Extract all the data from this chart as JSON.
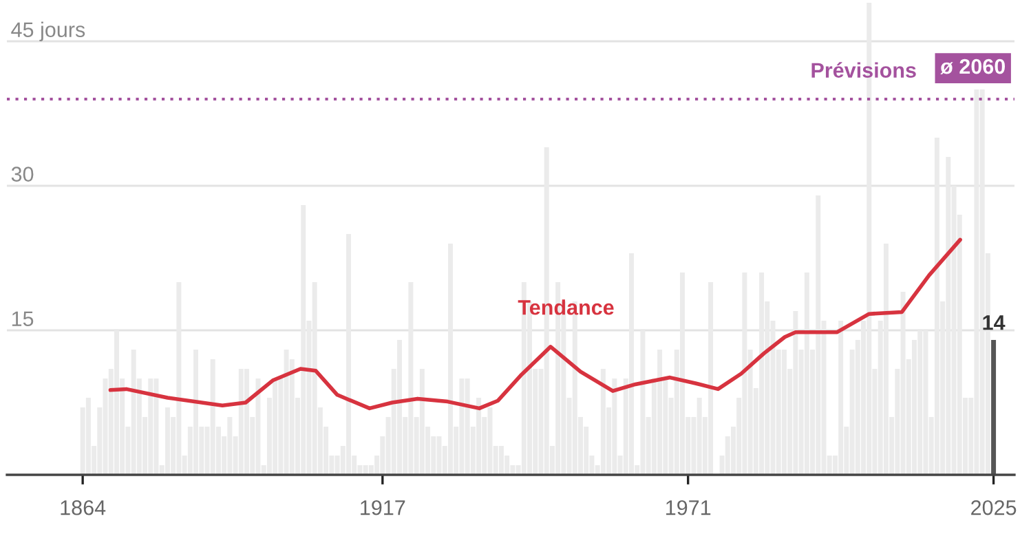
{
  "chart_data": {
    "type": "bar",
    "x": [
      1864,
      1865,
      1866,
      1867,
      1868,
      1869,
      1870,
      1871,
      1872,
      1873,
      1874,
      1875,
      1876,
      1877,
      1878,
      1879,
      1880,
      1881,
      1882,
      1883,
      1884,
      1885,
      1886,
      1887,
      1888,
      1889,
      1890,
      1891,
      1892,
      1893,
      1894,
      1895,
      1896,
      1897,
      1898,
      1899,
      1900,
      1901,
      1902,
      1903,
      1904,
      1905,
      1906,
      1907,
      1908,
      1909,
      1910,
      1911,
      1912,
      1913,
      1914,
      1915,
      1916,
      1917,
      1918,
      1919,
      1920,
      1921,
      1922,
      1923,
      1924,
      1925,
      1926,
      1927,
      1928,
      1929,
      1930,
      1931,
      1932,
      1933,
      1934,
      1935,
      1936,
      1937,
      1938,
      1939,
      1940,
      1941,
      1942,
      1943,
      1944,
      1945,
      1946,
      1947,
      1948,
      1949,
      1950,
      1951,
      1952,
      1953,
      1954,
      1955,
      1956,
      1957,
      1958,
      1959,
      1960,
      1961,
      1962,
      1963,
      1964,
      1965,
      1966,
      1967,
      1968,
      1969,
      1970,
      1971,
      1972,
      1973,
      1974,
      1975,
      1976,
      1977,
      1978,
      1979,
      1980,
      1981,
      1982,
      1983,
      1984,
      1985,
      1986,
      1987,
      1988,
      1989,
      1990,
      1991,
      1992,
      1993,
      1994,
      1995,
      1996,
      1997,
      1998,
      1999,
      2000,
      2001,
      2002,
      2003,
      2004,
      2005,
      2006,
      2007,
      2008,
      2009,
      2010,
      2011,
      2012,
      2013,
      2014,
      2015,
      2016,
      2017,
      2018,
      2019,
      2020,
      2021,
      2022,
      2023,
      2024,
      2025
    ],
    "values": [
      7,
      8,
      3,
      7,
      10,
      11,
      15,
      10,
      5,
      13,
      10,
      6,
      10,
      10,
      1,
      7,
      6,
      20,
      2,
      5,
      13,
      5,
      5,
      12,
      5,
      4,
      6,
      4,
      11,
      11,
      6,
      10,
      1,
      8,
      10,
      10,
      13,
      12,
      8,
      28,
      16,
      20,
      7,
      5,
      2,
      2,
      3,
      25,
      2,
      1,
      1,
      1,
      2,
      4,
      6,
      11,
      14,
      6,
      20,
      6,
      11,
      5,
      4,
      4,
      3,
      24,
      5,
      10,
      10,
      5,
      8,
      6,
      7,
      3,
      3,
      2,
      1,
      1,
      20,
      18,
      11,
      11,
      34,
      3,
      20,
      18,
      8,
      18,
      6,
      5,
      2,
      1,
      11,
      7,
      10,
      2,
      10,
      23,
      1,
      15,
      6,
      10,
      13,
      10,
      8,
      13,
      21,
      6,
      6,
      8,
      6,
      20,
      0,
      2,
      4,
      5,
      8,
      21,
      13,
      9,
      21,
      18,
      16,
      13,
      13,
      11,
      17,
      13,
      21,
      13,
      29,
      16,
      2,
      2,
      16,
      5,
      13,
      14,
      16,
      49,
      11,
      16,
      24,
      6,
      11,
      19,
      12,
      14,
      15,
      15,
      6,
      35,
      18,
      33,
      30,
      27,
      8,
      8,
      40,
      40,
      23,
      14
    ],
    "colors": [
      "#ebebeb",
      "#ebebeb",
      "#ebebeb",
      "#ebebeb",
      "#ebebeb",
      "#ebebeb",
      "#ebebeb",
      "#ebebeb",
      "#ebebeb",
      "#ebebeb",
      "#ebebeb",
      "#ebebeb",
      "#ebebeb",
      "#ebebeb",
      "#ebebeb",
      "#ebebeb",
      "#ebebeb",
      "#ebebeb",
      "#ebebeb",
      "#ebebeb",
      "#ebebeb",
      "#ebebeb",
      "#ebebeb",
      "#ebebeb",
      "#ebebeb",
      "#ebebeb",
      "#ebebeb",
      "#ebebeb",
      "#ebebeb",
      "#ebebeb",
      "#ebebeb",
      "#ebebeb",
      "#ebebeb",
      "#ebebeb",
      "#ebebeb",
      "#ebebeb",
      "#ebebeb",
      "#ebebeb",
      "#ebebeb",
      "#ebebeb",
      "#ebebeb",
      "#ebebeb",
      "#ebebeb",
      "#ebebeb",
      "#ebebeb",
      "#ebebeb",
      "#ebebeb",
      "#ebebeb",
      "#ebebeb",
      "#ebebeb",
      "#ebebeb",
      "#ebebeb",
      "#ebebeb",
      "#ebebeb",
      "#ebebeb",
      "#ebebeb",
      "#ebebeb",
      "#ebebeb",
      "#ebebeb",
      "#ebebeb",
      "#ebebeb",
      "#ebebeb",
      "#ebebeb",
      "#ebebeb",
      "#ebebeb",
      "#ebebeb",
      "#ebebeb",
      "#ebebeb",
      "#ebebeb",
      "#ebebeb",
      "#ebebeb",
      "#ebebeb",
      "#ebebeb",
      "#ebebeb",
      "#ebebeb",
      "#ebebeb",
      "#ebebeb",
      "#ebebeb",
      "#ebebeb",
      "#ebebeb",
      "#ebebeb",
      "#ebebeb",
      "#ebebeb",
      "#ebebeb",
      "#ebebeb",
      "#ebebeb",
      "#ebebeb",
      "#ebebeb",
      "#ebebeb",
      "#ebebeb",
      "#ebebeb",
      "#ebebeb",
      "#ebebeb",
      "#ebebeb",
      "#ebebeb",
      "#ebebeb",
      "#ebebeb",
      "#ebebeb",
      "#ebebeb",
      "#ebebeb",
      "#ebebeb",
      "#ebebeb",
      "#ebebeb",
      "#ebebeb",
      "#ebebeb",
      "#ebebeb",
      "#ebebeb",
      "#ebebeb",
      "#ebebeb",
      "#ebebeb",
      "#ebebeb",
      "#ebebeb",
      "#ebebeb",
      "#ebebeb",
      "#ebebeb",
      "#ebebeb",
      "#ebebeb",
      "#ebebeb",
      "#ebebeb",
      "#ebebeb",
      "#ebebeb",
      "#ebebeb",
      "#ebebeb",
      "#ebebeb",
      "#ebebeb",
      "#ebebeb",
      "#ebebeb",
      "#ebebeb",
      "#ebebeb",
      "#ebebeb",
      "#ebebeb",
      "#ebebeb",
      "#ebebeb",
      "#ebebeb",
      "#ebebeb",
      "#ebebeb",
      "#ebebeb",
      "#ebebeb",
      "#ebebeb",
      "#ebebeb",
      "#ebebeb",
      "#ebebeb",
      "#ebebeb",
      "#ebebeb",
      "#ebebeb",
      "#ebebeb",
      "#ebebeb",
      "#ebebeb",
      "#ebebeb",
      "#ebebeb",
      "#ebebeb",
      "#ebebeb",
      "#ebebeb",
      "#ebebeb",
      "#ebebeb",
      "#ebebeb",
      "#ebebeb",
      "#ebebeb",
      "#ebebeb",
      "#ebebeb",
      "#ebebeb",
      "#555555"
    ],
    "value_labels": [
      null,
      null,
      null,
      null,
      null,
      null,
      null,
      null,
      null,
      null,
      null,
      null,
      null,
      null,
      null,
      null,
      null,
      null,
      null,
      null,
      null,
      null,
      null,
      null,
      null,
      null,
      null,
      null,
      null,
      null,
      null,
      null,
      null,
      null,
      null,
      null,
      null,
      null,
      null,
      null,
      null,
      null,
      null,
      null,
      null,
      null,
      null,
      null,
      null,
      null,
      null,
      null,
      null,
      null,
      null,
      null,
      null,
      null,
      null,
      null,
      null,
      null,
      null,
      null,
      null,
      null,
      null,
      null,
      null,
      null,
      null,
      null,
      null,
      null,
      null,
      null,
      null,
      null,
      null,
      null,
      null,
      null,
      null,
      null,
      null,
      null,
      null,
      null,
      null,
      null,
      null,
      null,
      null,
      null,
      null,
      null,
      null,
      null,
      null,
      null,
      null,
      null,
      null,
      null,
      null,
      null,
      null,
      null,
      null,
      null,
      null,
      null,
      null,
      null,
      null,
      null,
      null,
      null,
      null,
      null,
      null,
      null,
      null,
      null,
      null,
      null,
      null,
      null,
      null,
      null,
      null,
      null,
      null,
      null,
      null,
      null,
      null,
      null,
      null,
      null,
      null,
      null,
      null,
      null,
      null,
      null,
      null,
      null,
      null,
      null,
      null,
      null,
      null,
      null,
      null,
      null,
      null,
      null,
      null,
      null,
      null,
      "14"
    ],
    "series": [
      {
        "name": "Tendance",
        "type": "line",
        "color": "#d7333f",
        "x": [
          1868.9,
          1871.7,
          1879,
          1888.7,
          1892.8,
          1897.6,
          1902.5,
          1905.2,
          1909,
          1914.7,
          1918.7,
          1923.2,
          1928.5,
          1934.1,
          1937.4,
          1941.4,
          1946.7,
          1952,
          1957.7,
          1961.7,
          1967.8,
          1972.3,
          1976.3,
          1980.4,
          1984.4,
          1988.1,
          1990,
          1997.3,
          2003,
          2008.8,
          2013.6,
          2019.1
        ],
        "values": [
          8.8,
          8.9,
          8.0,
          7.2,
          7.5,
          9.8,
          11.0,
          10.8,
          8.3,
          6.9,
          7.5,
          7.9,
          7.6,
          6.9,
          7.7,
          10.3,
          13.3,
          10.7,
          8.7,
          9.4,
          10.1,
          9.5,
          8.9,
          10.5,
          12.6,
          14.3,
          14.8,
          14.8,
          16.7,
          16.9,
          20.7,
          24.4
        ]
      }
    ],
    "ref_lines": [
      {
        "axis": "y",
        "value": 39,
        "label": "Prévisions",
        "color": "#a4529e",
        "line_style": "dotted"
      }
    ],
    "annotations": [
      "ø 2060"
    ],
    "xlim": [
      1850.6,
      2028.7
    ],
    "xticks": [
      1864,
      1917,
      1971,
      2025
    ],
    "ylim": [
      0,
      49
    ],
    "yticks": [
      {
        "value": 15,
        "label": "15"
      },
      {
        "value": 30,
        "label": "30"
      },
      {
        "value": 45,
        "label": "45 jours"
      }
    ],
    "grid": "y"
  }
}
